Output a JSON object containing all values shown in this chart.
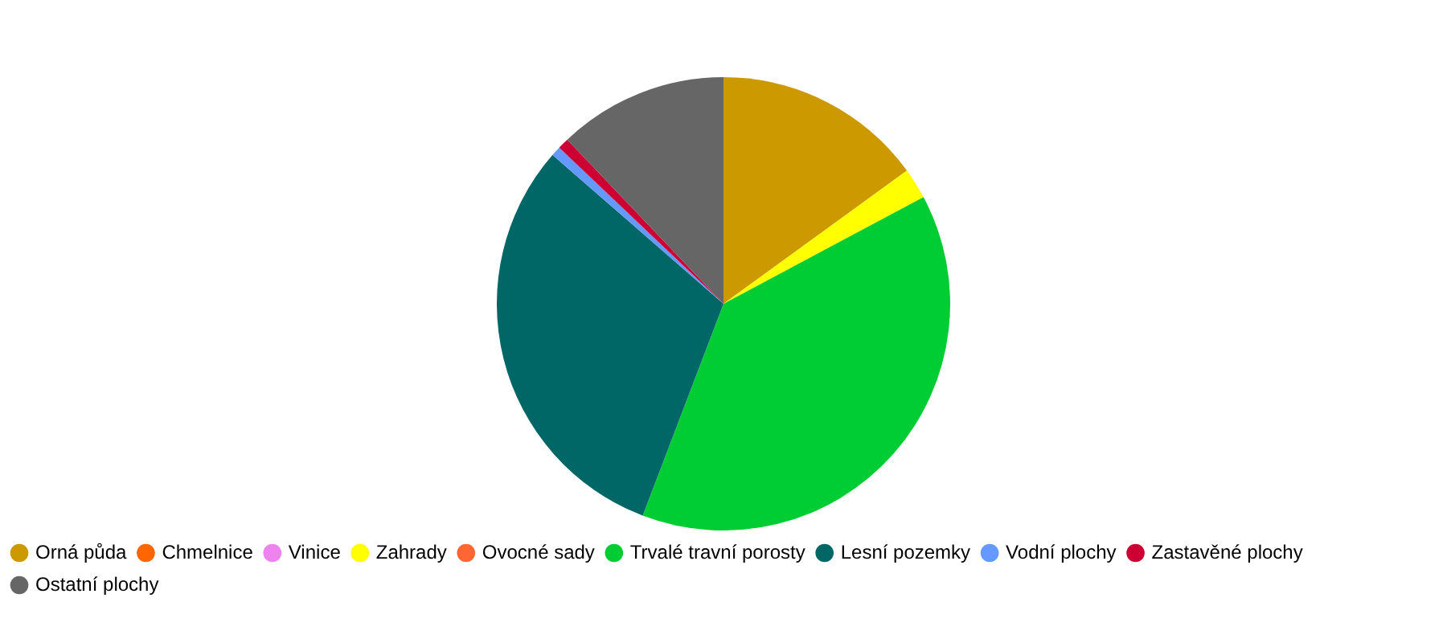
{
  "chart_data": {
    "type": "pie",
    "categories": [
      "Orná půda",
      "Chmelnice",
      "Vinice",
      "Zahrady",
      "Ovocné sady",
      "Trvalé travní porosty",
      "Lesní pozemky",
      "Vodní plochy",
      "Zastavěné plochy",
      "Ostatní plochy"
    ],
    "values": [
      15,
      0,
      0,
      2.2,
      0,
      38.6,
      30.6,
      0.7,
      0.8,
      12.1
    ],
    "colors": [
      "#cc9900",
      "#ff6600",
      "#ee82ee",
      "#ffff00",
      "#ff6633",
      "#00cc33",
      "#006666",
      "#6699ff",
      "#cc0033",
      "#666666"
    ],
    "legend": "bottom"
  }
}
